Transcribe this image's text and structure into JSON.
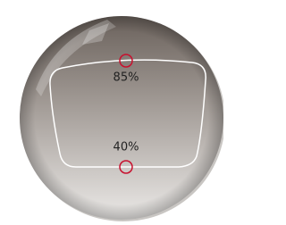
{
  "markers": [
    {
      "label": "85%"
    },
    {
      "label": "40%"
    }
  ]
}
